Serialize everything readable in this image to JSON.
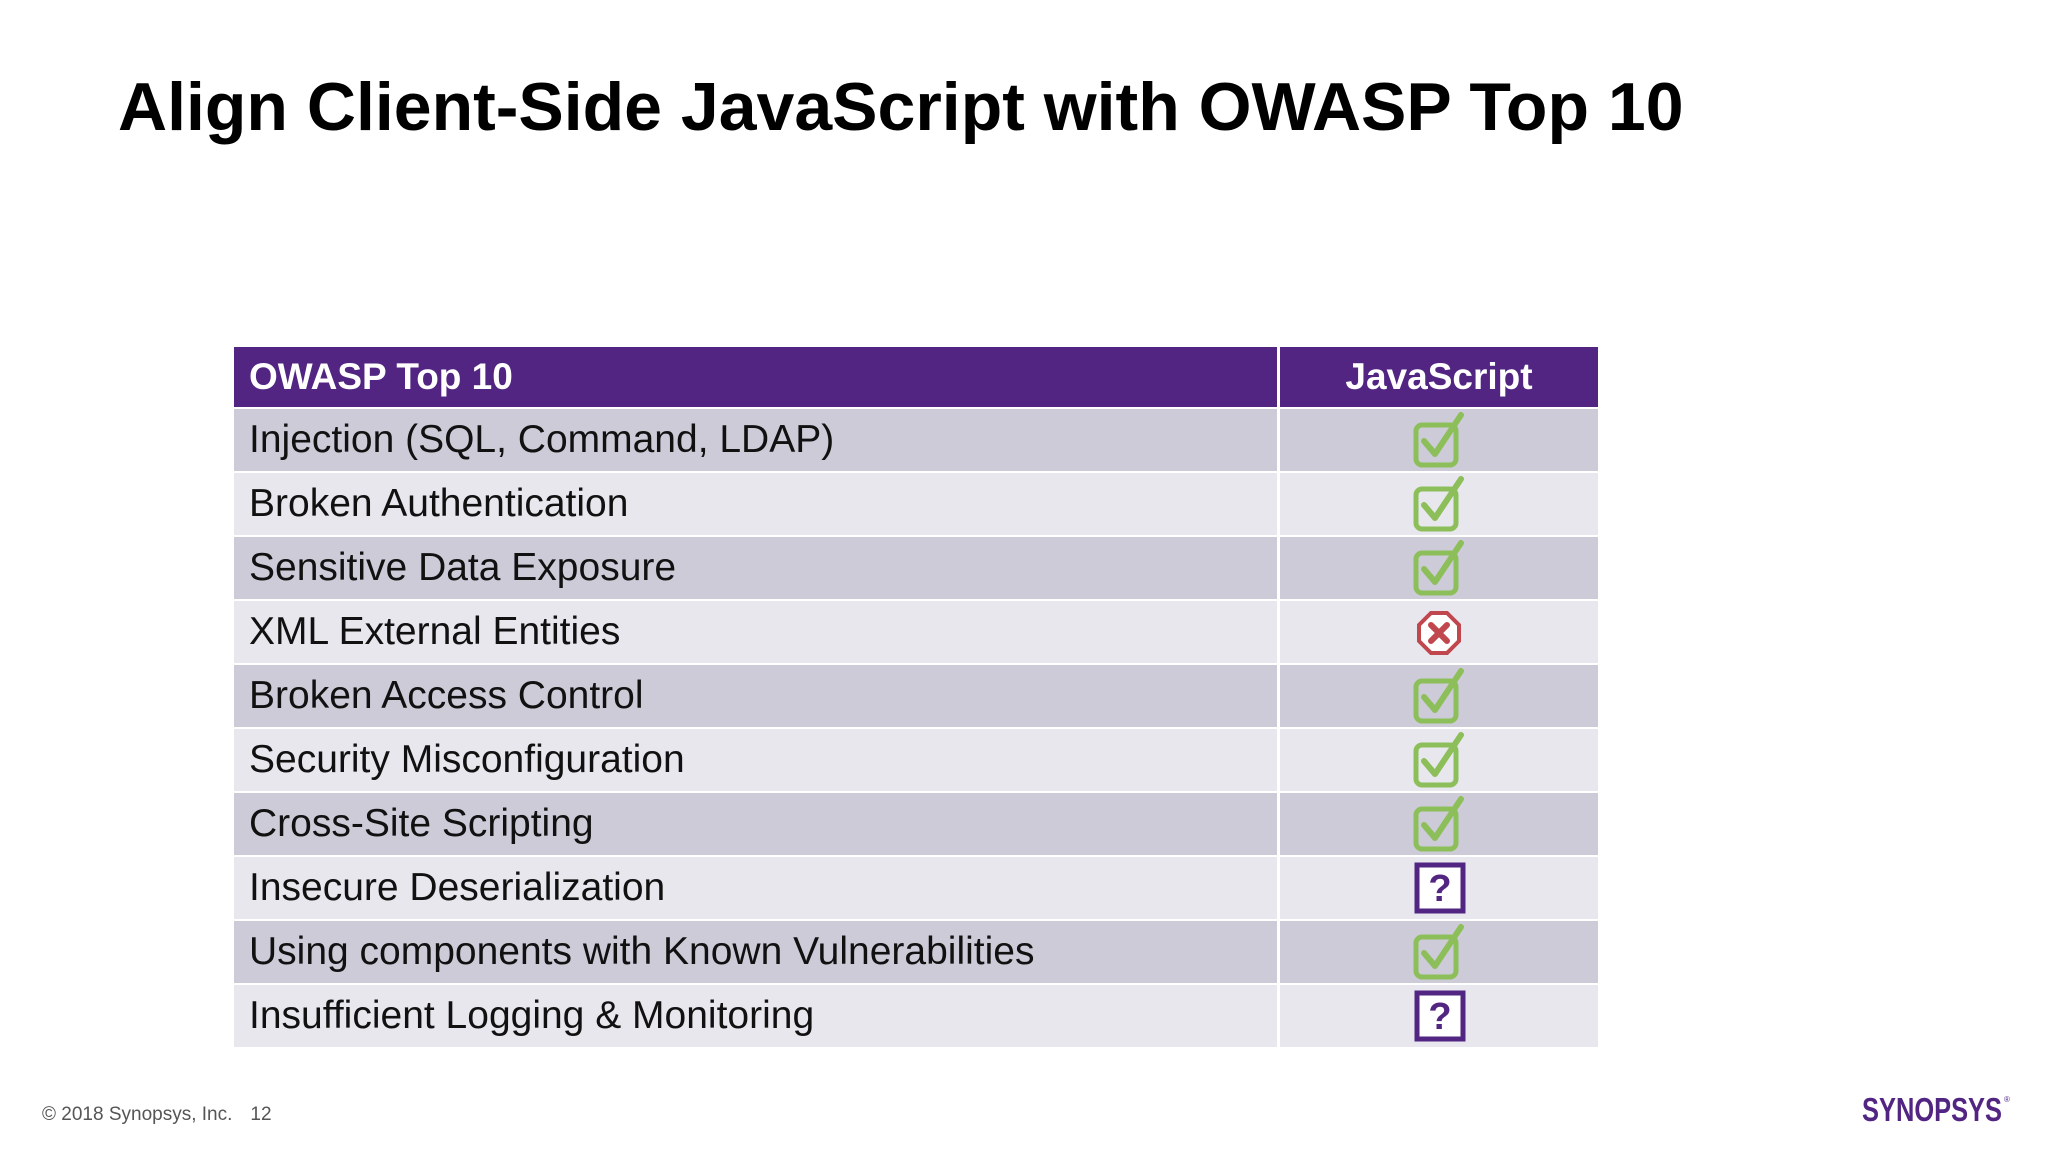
{
  "slide": {
    "title": "Align Client-Side JavaScript with OWASP Top 10"
  },
  "table": {
    "headers": [
      "OWASP Top 10",
      "JavaScript"
    ],
    "rows": [
      {
        "topic": "Injection (SQL, Command, LDAP)",
        "status": "check"
      },
      {
        "topic": "Broken Authentication",
        "status": "check"
      },
      {
        "topic": "Sensitive Data Exposure",
        "status": "check"
      },
      {
        "topic": "XML External Entities",
        "status": "cross"
      },
      {
        "topic": "Broken Access Control",
        "status": "check"
      },
      {
        "topic": "Security Misconfiguration",
        "status": "check"
      },
      {
        "topic": "Cross-Site Scripting",
        "status": "check"
      },
      {
        "topic": "Insecure Deserialization",
        "status": "question"
      },
      {
        "topic": "Using components with Known Vulnerabilities",
        "status": "check"
      },
      {
        "topic": "Insufficient Logging & Monitoring",
        "status": "question"
      }
    ]
  },
  "footer": {
    "copyright": "© 2018 Synopsys, Inc.",
    "page_number": "12",
    "logo_text": "SYNOPSYS"
  },
  "colors": {
    "header_bg": "#522582",
    "row_dark": "#cdcbd8",
    "row_light": "#e8e7ee",
    "check": "#8cbf5a",
    "cross": "#c0474e",
    "question": "#522582"
  },
  "icons": {
    "check": "checkbox-check-icon",
    "cross": "stop-cross-icon",
    "question": "question-box-icon"
  }
}
